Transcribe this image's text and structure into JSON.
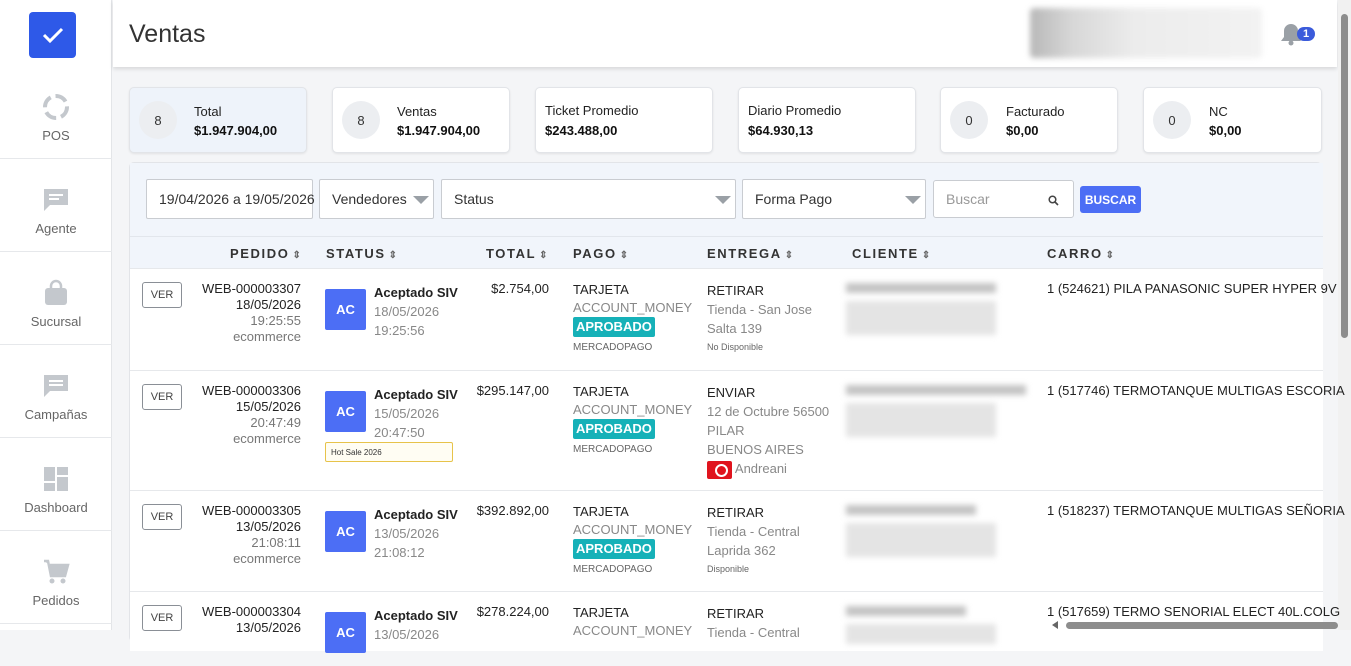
{
  "app": {
    "page_title": "Ventas",
    "notification_count": "1",
    "accent": "#4c6ef5"
  },
  "sidebar": {
    "items": [
      {
        "label": "POS",
        "icon": "pos-ring-icon"
      },
      {
        "label": "Agente",
        "icon": "chat-icon"
      },
      {
        "label": "Sucursal",
        "icon": "shopping-bag-icon"
      },
      {
        "label": "Campañas",
        "icon": "message-icon"
      },
      {
        "label": "Dashboard",
        "icon": "dashboard-icon"
      },
      {
        "label": "Pedidos",
        "icon": "cart-icon"
      }
    ]
  },
  "stats": [
    {
      "count": "8",
      "title": "Total",
      "value": "$1.947.904,00"
    },
    {
      "count": "8",
      "title": "Ventas",
      "value": "$1.947.904,00"
    },
    {
      "title": "Ticket Promedio",
      "value": "$243.488,00"
    },
    {
      "title": "Diario Promedio",
      "value": "$64.930,13"
    },
    {
      "count": "0",
      "title": "Facturado",
      "value": "$0,00"
    },
    {
      "count": "0",
      "title": "NC",
      "value": "$0,00"
    }
  ],
  "filters": {
    "date_range": "19/04/2026 a 19/05/2026",
    "vendedores": "Vendedores",
    "status": "Status",
    "forma_pago": "Forma Pago",
    "search_placeholder": "Buscar",
    "search_button": "BUSCAR"
  },
  "table": {
    "columns": [
      "PEDIDO",
      "STATUS",
      "TOTAL",
      "PAGO",
      "ENTREGA",
      "CLIENTE",
      "CARRO"
    ],
    "sort_glyph": "⇕",
    "rows": [
      {
        "ver": "VER",
        "id": "WEB-000003307",
        "date": "18/05/2026",
        "time": "19:25:55",
        "channel": "ecommerce",
        "status_initials": "AC",
        "status": "Aceptado SIV",
        "status_date": "18/05/2026",
        "status_time": "19:25:56",
        "total": "$2.754,00",
        "pago_tipo": "TARJETA",
        "pago_cuenta": "ACCOUNT_MONEY",
        "pago_estado": "APROBADO",
        "pago_proveedor": "MERCADOPAGO",
        "entrega_tipo": "RETIRAR",
        "entrega_l1": "Tienda - San Jose",
        "entrega_l2": "Salta 139",
        "entrega_nota": "No Disponible",
        "carro": "1 (524621) PILA PANASONIC SUPER HYPER 9V"
      },
      {
        "ver": "VER",
        "id": "WEB-000003306",
        "date": "15/05/2026",
        "time": "20:47:49",
        "channel": "ecommerce",
        "status_initials": "AC",
        "status": "Aceptado SIV",
        "status_date": "15/05/2026",
        "status_time": "20:47:50",
        "tag": "Hot Sale 2026",
        "total": "$295.147,00",
        "pago_tipo": "TARJETA",
        "pago_cuenta": "ACCOUNT_MONEY",
        "pago_estado": "APROBADO",
        "pago_proveedor": "MERCADOPAGO",
        "entrega_tipo": "ENVIAR",
        "entrega_l1": "12 de Octubre 56500",
        "entrega_l2": "PILAR",
        "entrega_l3": "BUENOS AIRES",
        "entrega_carrier": "Andreani",
        "carro": "1 (517746) TERMOTANQUE MULTIGAS ESCORIA"
      },
      {
        "ver": "VER",
        "id": "WEB-000003305",
        "date": "13/05/2026",
        "time": "21:08:11",
        "channel": "ecommerce",
        "status_initials": "AC",
        "status": "Aceptado SIV",
        "status_date": "13/05/2026",
        "status_time": "21:08:12",
        "total": "$392.892,00",
        "pago_tipo": "TARJETA",
        "pago_cuenta": "ACCOUNT_MONEY",
        "pago_estado": "APROBADO",
        "pago_proveedor": "MERCADOPAGO",
        "entrega_tipo": "RETIRAR",
        "entrega_l1": "Tienda - Central",
        "entrega_l2": "Laprida 362",
        "entrega_nota": "Disponible",
        "carro": "1 (518237) TERMOTANQUE MULTIGAS SEÑORIA"
      },
      {
        "ver": "VER",
        "id": "WEB-000003304",
        "date": "13/05/2026",
        "time": "",
        "channel": "",
        "status_initials": "AC",
        "status": "Aceptado SIV",
        "status_date": "13/05/2026",
        "status_time": "",
        "total": "$278.224,00",
        "pago_tipo": "TARJETA",
        "pago_cuenta": "ACCOUNT_MONEY",
        "entrega_tipo": "RETIRAR",
        "entrega_l1": "Tienda - Central",
        "carro": "1 (517659) TERMO SENORIAL ELECT 40L.COLG"
      }
    ]
  }
}
